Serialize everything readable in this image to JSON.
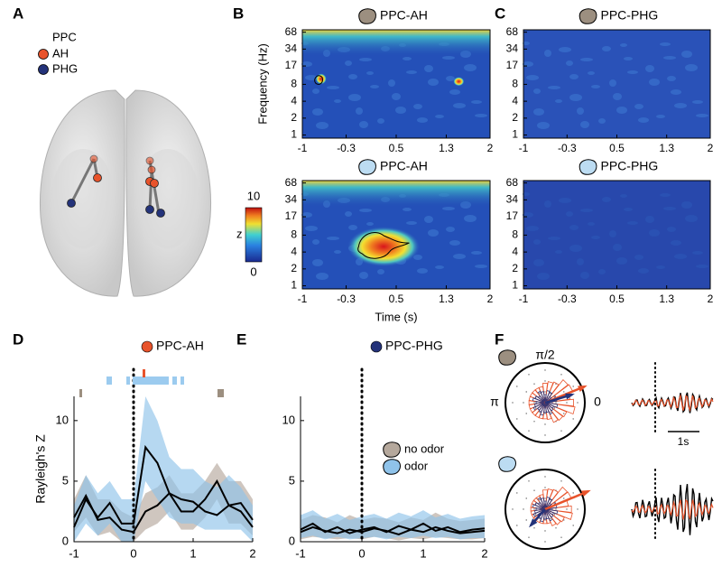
{
  "panel_labels": [
    "A",
    "B",
    "C",
    "D",
    "E",
    "F"
  ],
  "panel_a": {
    "legend_title": "PPC",
    "legend": [
      {
        "name": "AH",
        "color": "#e8532b"
      },
      {
        "name": "PHG",
        "color": "#24337a"
      }
    ]
  },
  "heatmaps": {
    "type": "heatmap",
    "ylabel": "Frequency (Hz)",
    "xlabel": "Time (s)",
    "xlim": [
      -1,
      2
    ],
    "xticks": [
      -1,
      -0.3,
      0.5,
      1.3,
      2
    ],
    "ylim": [
      0.88,
      75
    ],
    "yticks": [
      1,
      2,
      4,
      8,
      17,
      34,
      68
    ],
    "log_y": true,
    "panels": [
      {
        "title": "PPC-AH"
      },
      {
        "title": "PPC-PHG"
      },
      {
        "title": "PPC-AH"
      },
      {
        "title": "PPC-PHG"
      }
    ],
    "colorbar": {
      "label": "z",
      "lim": [
        0,
        10
      ],
      "ticks": [
        0,
        10
      ]
    }
  },
  "chart_data": [
    {
      "type": "line",
      "title": "PPC-AH",
      "title_marker_color": "#e8532b",
      "ylabel": "Rayleigh's Z",
      "x": [
        -1,
        -0.8,
        -0.6,
        -0.4,
        -0.2,
        0,
        0.2,
        0.4,
        0.6,
        0.8,
        1.0,
        1.2,
        1.4,
        1.6,
        1.8,
        2.0
      ],
      "xlim": [
        -1,
        2
      ],
      "xticks": [
        -1,
        0,
        1,
        2
      ],
      "ylim": [
        0,
        12
      ],
      "yticks": [
        0,
        5,
        10
      ],
      "series": [
        {
          "color": "#000000",
          "band_color": "#b5a89c",
          "values": [
            2.0,
            3.8,
            1.8,
            2.0,
            1.0,
            0.8,
            2.5,
            3.0,
            4.0,
            2.5,
            2.5,
            3.5,
            5.0,
            3.0,
            3.2,
            1.8
          ],
          "upper": [
            3.5,
            5.5,
            3.5,
            3.5,
            2.5,
            2,
            4,
            4.5,
            5.5,
            4,
            4,
            5,
            6.5,
            5,
            5,
            3.5
          ],
          "lower": [
            0.8,
            2,
            0.5,
            0.8,
            0,
            0,
            1,
            1.5,
            2.5,
            1,
            1,
            2,
            3.5,
            1.5,
            1.5,
            0.5
          ]
        },
        {
          "color": "#000000",
          "band_color": "#8fc3ea",
          "values": [
            1.2,
            3.5,
            2.0,
            3.2,
            1.5,
            1.5,
            7.8,
            6.5,
            4.0,
            3.5,
            3.3,
            2.5,
            2.2,
            3.0,
            2.5,
            1.2
          ],
          "upper": [
            3,
            5.5,
            4,
            5,
            3.5,
            3.5,
            12,
            10,
            7,
            6,
            6,
            5,
            4.5,
            5.5,
            4.5,
            3
          ],
          "lower": [
            0,
            1.5,
            0.5,
            1.5,
            0,
            0,
            5,
            3.5,
            2,
            1.5,
            1.5,
            1,
            1,
            1,
            1,
            0
          ]
        }
      ]
    },
    {
      "type": "line",
      "title": "PPC-PHG",
      "title_marker_color": "#24337a",
      "legend": true,
      "x": [
        -1,
        -0.8,
        -0.6,
        -0.4,
        -0.2,
        0,
        0.2,
        0.4,
        0.6,
        0.8,
        1.0,
        1.2,
        1.4,
        1.6,
        1.8,
        2.0
      ],
      "xlim": [
        -1,
        2
      ],
      "xticks": [
        -1,
        0,
        1,
        2
      ],
      "ylim": [
        0,
        12
      ],
      "yticks": [
        0,
        5,
        10
      ],
      "series": [
        {
          "name": "no odor",
          "color": "#000000",
          "band_color": "#b5a89c",
          "values": [
            0.8,
            1.2,
            0.9,
            0.7,
            1.0,
            0.8,
            1.1,
            0.9,
            0.6,
            1.0,
            0.8,
            1.2,
            0.9,
            0.7,
            0.8,
            0.9
          ],
          "upper": [
            1.8,
            2.2,
            2.0,
            1.6,
            2.2,
            1.8,
            2.0,
            1.9,
            1.6,
            2.0,
            1.8,
            2.4,
            1.9,
            1.7,
            1.8,
            1.9
          ],
          "lower": [
            0.2,
            0.4,
            0.3,
            0.2,
            0.3,
            0.2,
            0.4,
            0.3,
            0.1,
            0.3,
            0.2,
            0.4,
            0.3,
            0.2,
            0.2,
            0.3
          ]
        },
        {
          "name": "odor",
          "color": "#000000",
          "band_color": "#8fc3ea",
          "values": [
            1.0,
            1.5,
            0.8,
            1.2,
            0.7,
            1.0,
            1.2,
            0.8,
            1.3,
            1.0,
            1.5,
            0.9,
            1.2,
            0.8,
            1.0,
            1.1
          ],
          "upper": [
            2.2,
            2.6,
            1.9,
            2.3,
            1.8,
            2.1,
            2.3,
            1.9,
            2.4,
            2.1,
            2.6,
            2.0,
            2.3,
            1.9,
            2.1,
            2.2
          ],
          "lower": [
            0.3,
            0.5,
            0.2,
            0.4,
            0.2,
            0.3,
            0.4,
            0.2,
            0.4,
            0.3,
            0.5,
            0.3,
            0.4,
            0.2,
            0.3,
            0.3
          ]
        }
      ]
    }
  ],
  "panel_f": {
    "labels": [
      "π/2",
      "π",
      "0"
    ],
    "scale_bar": "1s"
  }
}
